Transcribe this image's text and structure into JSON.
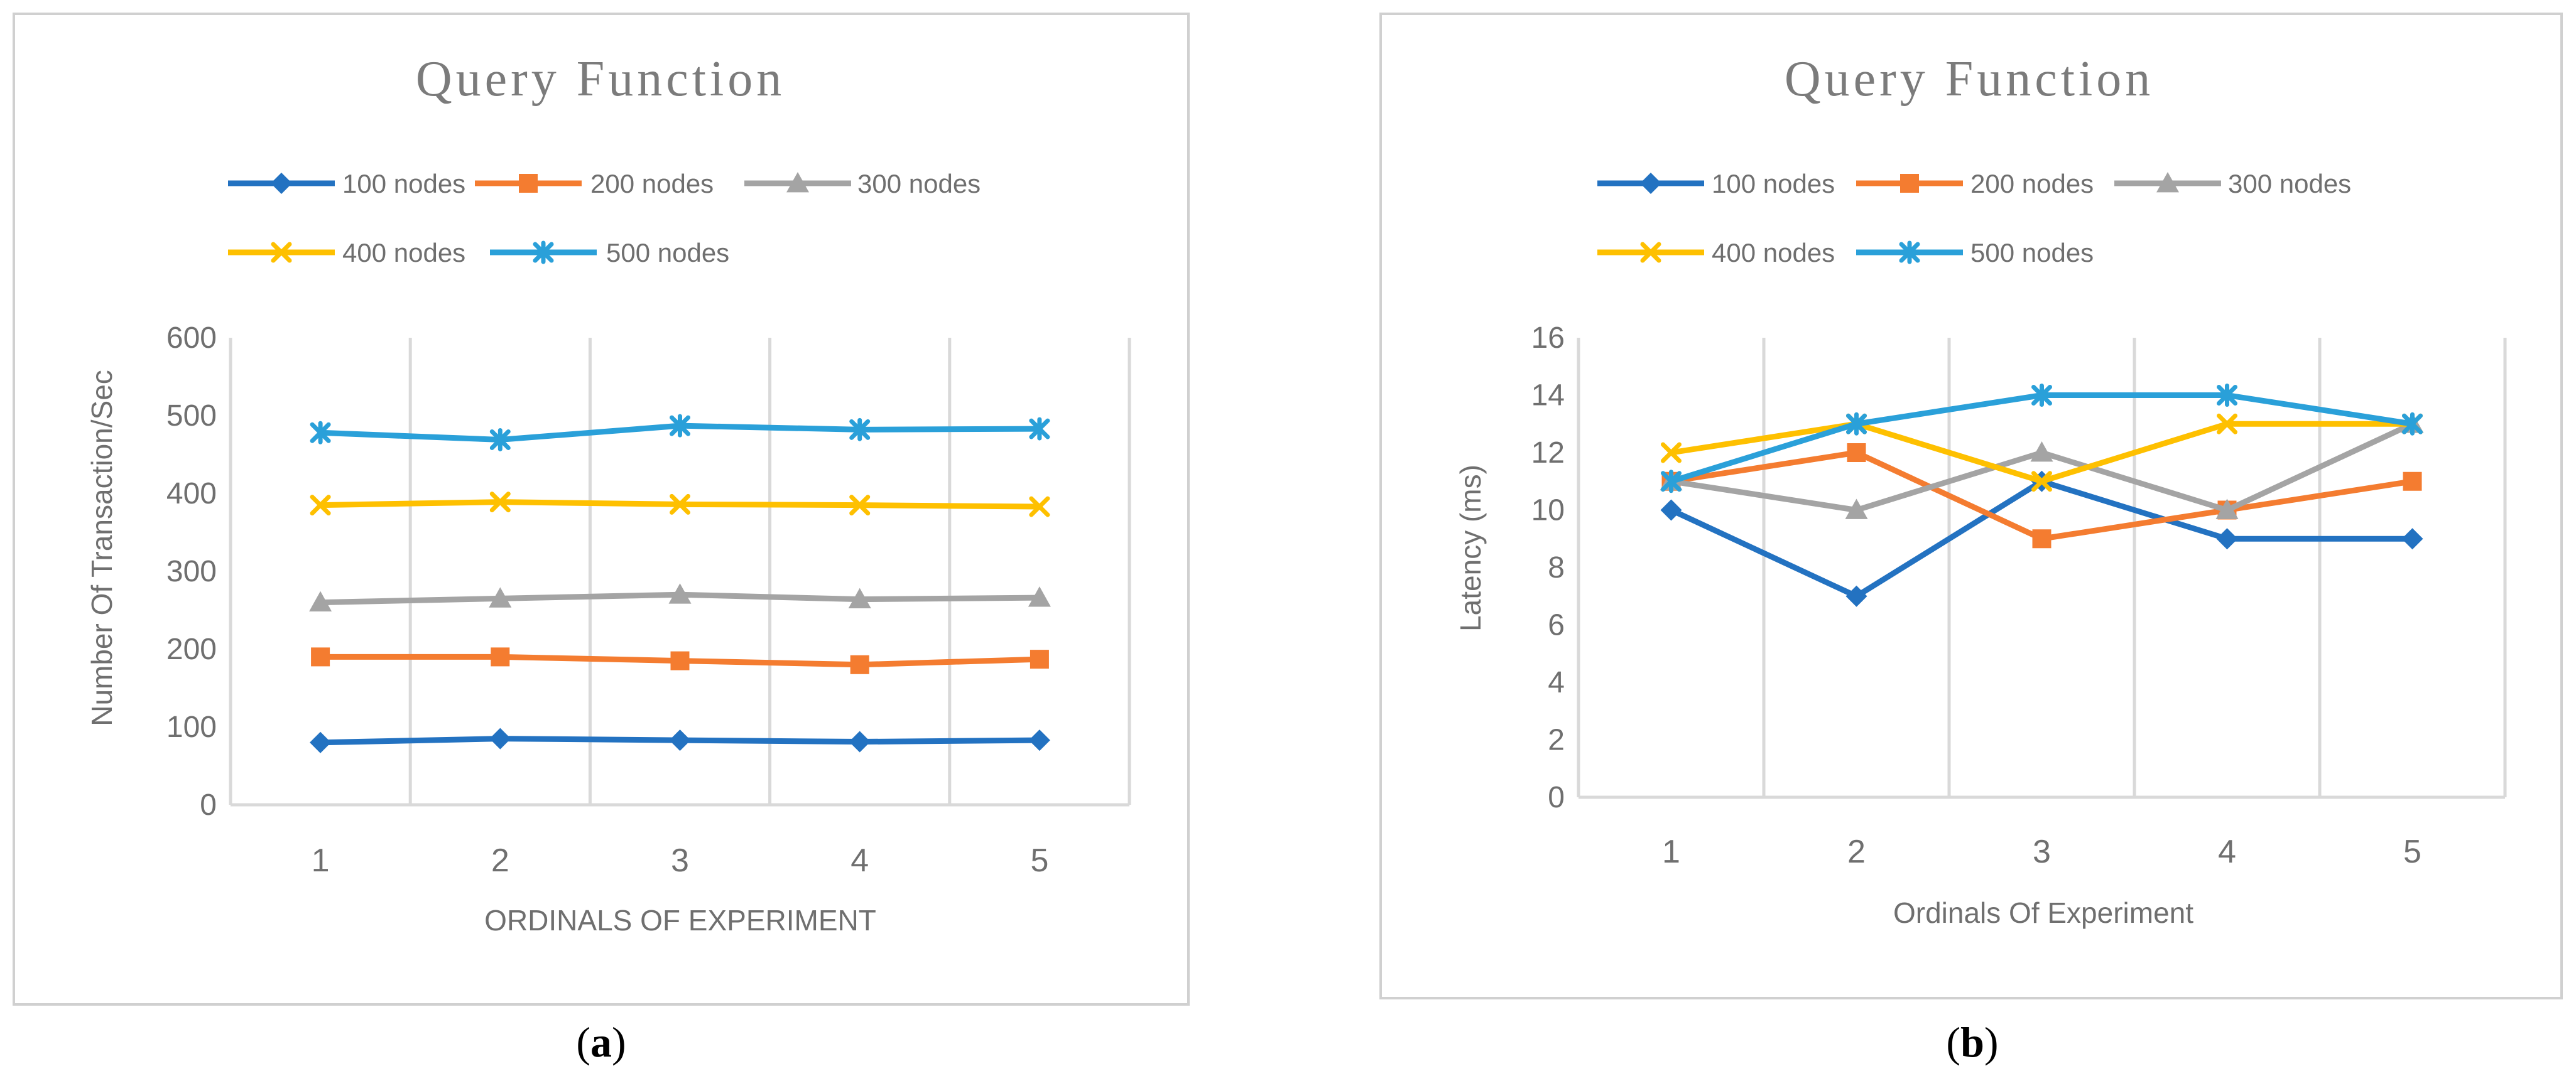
{
  "colors": {
    "s100": "#2372C1",
    "s200": "#F47C30",
    "s300": "#A4A4A4",
    "s400": "#FEC000",
    "s500": "#2AA0D9",
    "text": "#6F6F6F",
    "title": "#7B7B7B",
    "grid": "#D9D9D9",
    "frame": "#D0D0D0"
  },
  "chart_data": [
    {
      "id": "a",
      "type": "line",
      "title": "Query Function",
      "xlabel": "ORDINALS OF EXPERIMENT",
      "ylabel": "Number Of Transaction/Sec",
      "categories": [
        "1",
        "2",
        "3",
        "4",
        "5"
      ],
      "ylim": [
        0,
        600
      ],
      "yticks": [
        0,
        100,
        200,
        300,
        400,
        500,
        600
      ],
      "caption": {
        "before": "(",
        "letter": "a",
        "after": ")"
      },
      "series": [
        {
          "name": "100 nodes",
          "marker": "diamond",
          "values": [
            80,
            85,
            83,
            81,
            83
          ]
        },
        {
          "name": "200 nodes",
          "marker": "square",
          "values": [
            190,
            190,
            185,
            180,
            187
          ]
        },
        {
          "name": "300 nodes",
          "marker": "triangle",
          "values": [
            260,
            265,
            270,
            264,
            266
          ]
        },
        {
          "name": "400 nodes",
          "marker": "x",
          "values": [
            385,
            389,
            386,
            385,
            383
          ]
        },
        {
          "name": "500 nodes",
          "marker": "star",
          "values": [
            478,
            469,
            487,
            482,
            483
          ]
        }
      ]
    },
    {
      "id": "b",
      "type": "line",
      "title": "Query Function",
      "xlabel": "Ordinals Of Experiment",
      "ylabel": "Latency (ms)",
      "categories": [
        "1",
        "2",
        "3",
        "4",
        "5"
      ],
      "ylim": [
        0,
        16
      ],
      "yticks": [
        0,
        2,
        4,
        6,
        8,
        10,
        12,
        14,
        16
      ],
      "caption": {
        "before": "(",
        "letter": "b",
        "after": ")"
      },
      "series": [
        {
          "name": "100 nodes",
          "marker": "diamond",
          "values": [
            10,
            7,
            11,
            9,
            9
          ]
        },
        {
          "name": "200 nodes",
          "marker": "square",
          "values": [
            11,
            12,
            9,
            10,
            11
          ]
        },
        {
          "name": "300 nodes",
          "marker": "triangle",
          "values": [
            11,
            10,
            12,
            10,
            13
          ]
        },
        {
          "name": "400 nodes",
          "marker": "x",
          "values": [
            12,
            13,
            11,
            13,
            13
          ]
        },
        {
          "name": "500 nodes",
          "marker": "star",
          "values": [
            11,
            13,
            14,
            14,
            13
          ]
        }
      ]
    }
  ]
}
